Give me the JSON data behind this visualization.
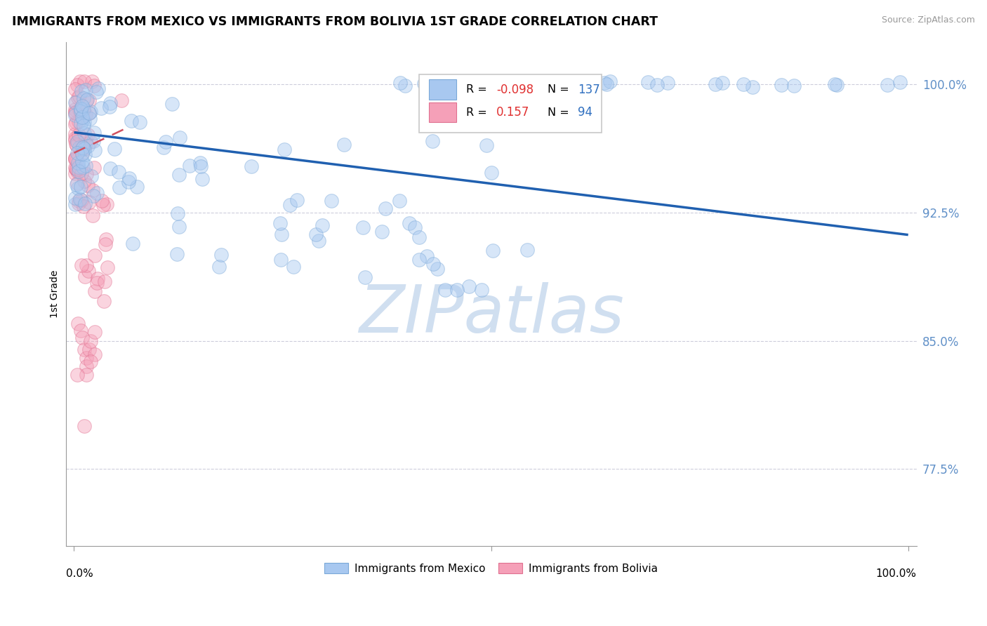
{
  "title": "IMMIGRANTS FROM MEXICO VS IMMIGRANTS FROM BOLIVIA 1ST GRADE CORRELATION CHART",
  "source": "Source: ZipAtlas.com",
  "ylabel": "1st Grade",
  "ytick_labels": [
    "100.0%",
    "92.5%",
    "85.0%",
    "77.5%"
  ],
  "ytick_values": [
    1.0,
    0.925,
    0.85,
    0.775
  ],
  "blue_color": "#a8c8f0",
  "blue_edge_color": "#7aa8d8",
  "pink_color": "#f5a0b8",
  "pink_edge_color": "#e07090",
  "trendline_blue_color": "#2060b0",
  "trendline_pink_color": "#d05060",
  "background_color": "#ffffff",
  "grid_color": "#c8c8d8",
  "watermark_color": "#d0dff0",
  "ytick_color": "#6090c8",
  "legend_R_color": "#e03030",
  "legend_N_color": "#3070c0",
  "legend_border_color": "#c8c8c8",
  "n_mexico": 137,
  "n_bolivia": 94,
  "mx_trendline": [
    0.0,
    1.0,
    0.972,
    0.912
  ],
  "bv_trendline": [
    0.0,
    0.065,
    0.96,
    0.975
  ]
}
